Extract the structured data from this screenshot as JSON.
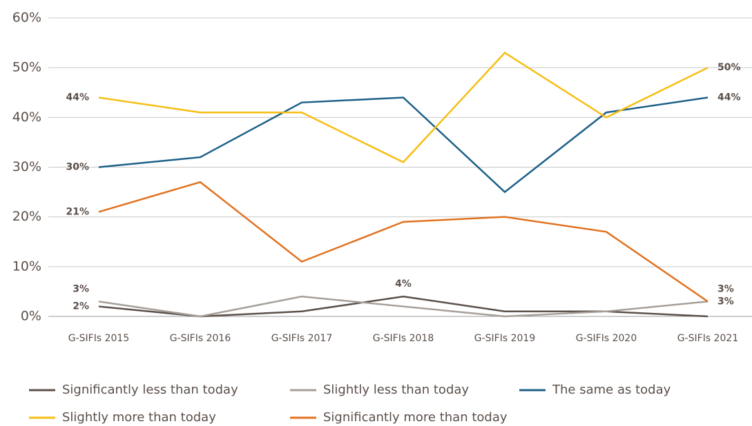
{
  "chart_data": {
    "type": "line",
    "categories": [
      "G-SIFIs 2015",
      "G-SIFIs 2016",
      "G-SIFIs 2017",
      "G-SIFIs 2018",
      "G-SIFIs 2019",
      "G-SIFIs 2020",
      "G-SIFIs 2021"
    ],
    "series": [
      {
        "name": "Significantly less than today",
        "color": "#5b4f49",
        "values": [
          2,
          0,
          1,
          4,
          1,
          1,
          0
        ],
        "value_labels": [
          "2%",
          null,
          null,
          "4%",
          null,
          null,
          null
        ]
      },
      {
        "name": "Slightly less than today",
        "color": "#a69e98",
        "values": [
          3,
          0,
          4,
          2,
          0,
          1,
          3
        ],
        "value_labels": [
          "3%",
          null,
          null,
          null,
          null,
          null,
          "3%"
        ]
      },
      {
        "name": "The same as today",
        "color": "#1b5f87",
        "values": [
          30,
          32,
          43,
          44,
          25,
          41,
          44
        ],
        "value_labels": [
          "30%",
          null,
          null,
          null,
          null,
          null,
          "44%"
        ]
      },
      {
        "name": "Slightly more than today",
        "color": "#f6be12",
        "values": [
          44,
          41,
          41,
          31,
          53,
          40,
          50
        ],
        "value_labels": [
          "44%",
          null,
          null,
          null,
          null,
          null,
          "50%"
        ]
      },
      {
        "name": "Significantly more than today",
        "color": "#e1711e",
        "values": [
          21,
          27,
          11,
          19,
          20,
          17,
          3
        ],
        "value_labels": [
          "21%",
          null,
          null,
          null,
          null,
          null,
          "3%"
        ]
      }
    ],
    "ylim": [
      0,
      60
    ],
    "yticks": [
      {
        "value": 0,
        "label": "0%"
      },
      {
        "value": 10,
        "label": "10%"
      },
      {
        "value": 20,
        "label": "20%"
      },
      {
        "value": 30,
        "label": "30%"
      },
      {
        "value": 40,
        "label": "40%"
      },
      {
        "value": 50,
        "label": "50%"
      },
      {
        "value": 60,
        "label": "60%"
      }
    ],
    "grid": true
  }
}
